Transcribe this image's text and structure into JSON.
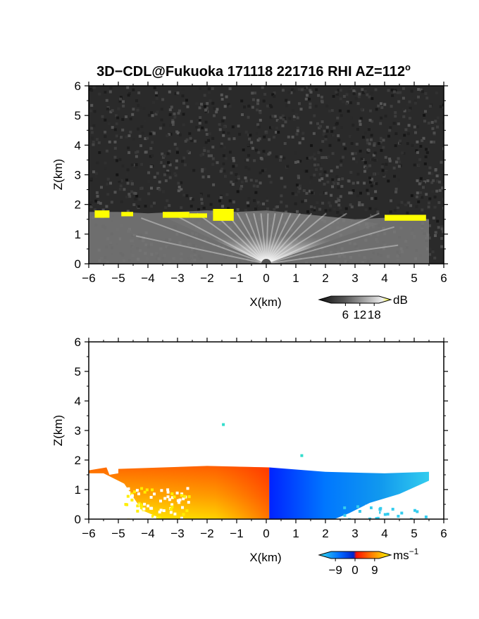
{
  "title": {
    "main": "3D−CDL@Fukuoka 171118 221716 RHI AZ=112",
    "degree": "o"
  },
  "chart_data": [
    {
      "type": "heatmap",
      "quantity": "SNR",
      "xlabel": "X(km)",
      "ylabel": "Z(km)",
      "xlim": [
        -6,
        6
      ],
      "ylim": [
        0,
        6
      ],
      "xticks": [
        "−6",
        "−5",
        "−4",
        "−3",
        "−2",
        "−1",
        "0",
        "1",
        "2",
        "3",
        "4",
        "5",
        "6"
      ],
      "yticks": [
        "0",
        "1",
        "2",
        "3",
        "4",
        "5",
        "6"
      ],
      "colorbar": {
        "unit": "dB",
        "ticks": [
          "6",
          "12",
          "18"
        ],
        "tick_values": [
          6,
          12,
          18
        ],
        "range": [
          0,
          20
        ],
        "colors": [
          "#111111",
          "#555555",
          "#999999",
          "#dddddd",
          "#ffff00"
        ]
      },
      "cloud_layer": {
        "top_km": [
          [
            -6,
            1.75
          ],
          [
            -5,
            1.75
          ],
          [
            -4,
            1.7
          ],
          [
            -3,
            1.75
          ],
          [
            -2,
            1.8
          ],
          [
            -1,
            1.75
          ],
          [
            0,
            1.8
          ],
          [
            1,
            1.7
          ],
          [
            2,
            1.6
          ],
          [
            3,
            1.5
          ],
          [
            4,
            1.55
          ],
          [
            5,
            1.55
          ],
          [
            5.5,
            1.5
          ]
        ],
        "high_snr_patches_km": [
          [
            -5.8,
            -5.3,
            1.55,
            1.8
          ],
          [
            -4.9,
            -4.5,
            1.6,
            1.75
          ],
          [
            -3.5,
            -2.6,
            1.55,
            1.75
          ],
          [
            -2.6,
            -2.0,
            1.55,
            1.7
          ],
          [
            -1.8,
            -1.1,
            1.45,
            1.85
          ],
          [
            4.0,
            5.4,
            1.45,
            1.65
          ]
        ]
      }
    },
    {
      "type": "heatmap",
      "quantity": "Doppler velocity",
      "xlabel": "X(km)",
      "ylabel": "Z(km)",
      "xlim": [
        -6,
        6
      ],
      "ylim": [
        0,
        6
      ],
      "xticks": [
        "−6",
        "−5",
        "−4",
        "−3",
        "−2",
        "−1",
        "0",
        "1",
        "2",
        "3",
        "4",
        "5",
        "6"
      ],
      "yticks": [
        "0",
        "1",
        "2",
        "3",
        "4",
        "5",
        "6"
      ],
      "colorbar": {
        "unit": "ms",
        "unit_exp": "−1",
        "ticks": [
          "−9",
          "0",
          "9"
        ],
        "tick_values": [
          -9,
          0,
          9
        ],
        "range": [
          -11,
          11
        ],
        "colors": [
          "#33ddee",
          "#0044ff",
          "#ff2200",
          "#ff8800",
          "#ffff00"
        ]
      },
      "velocity_field_km": {
        "negative_side": {
          "x": [
            -6,
            0.1
          ],
          "top": 1.8,
          "color_near_origin": "#ffee00",
          "color_top": "#ff7700"
        },
        "positive_side": {
          "x": [
            0.1,
            5.5
          ],
          "top": 1.6,
          "color_near_origin": "#0033ff",
          "color_far": "#33ccee"
        },
        "isolated_points": [
          [
            -1.45,
            3.2
          ],
          [
            1.2,
            2.15
          ]
        ]
      }
    }
  ]
}
